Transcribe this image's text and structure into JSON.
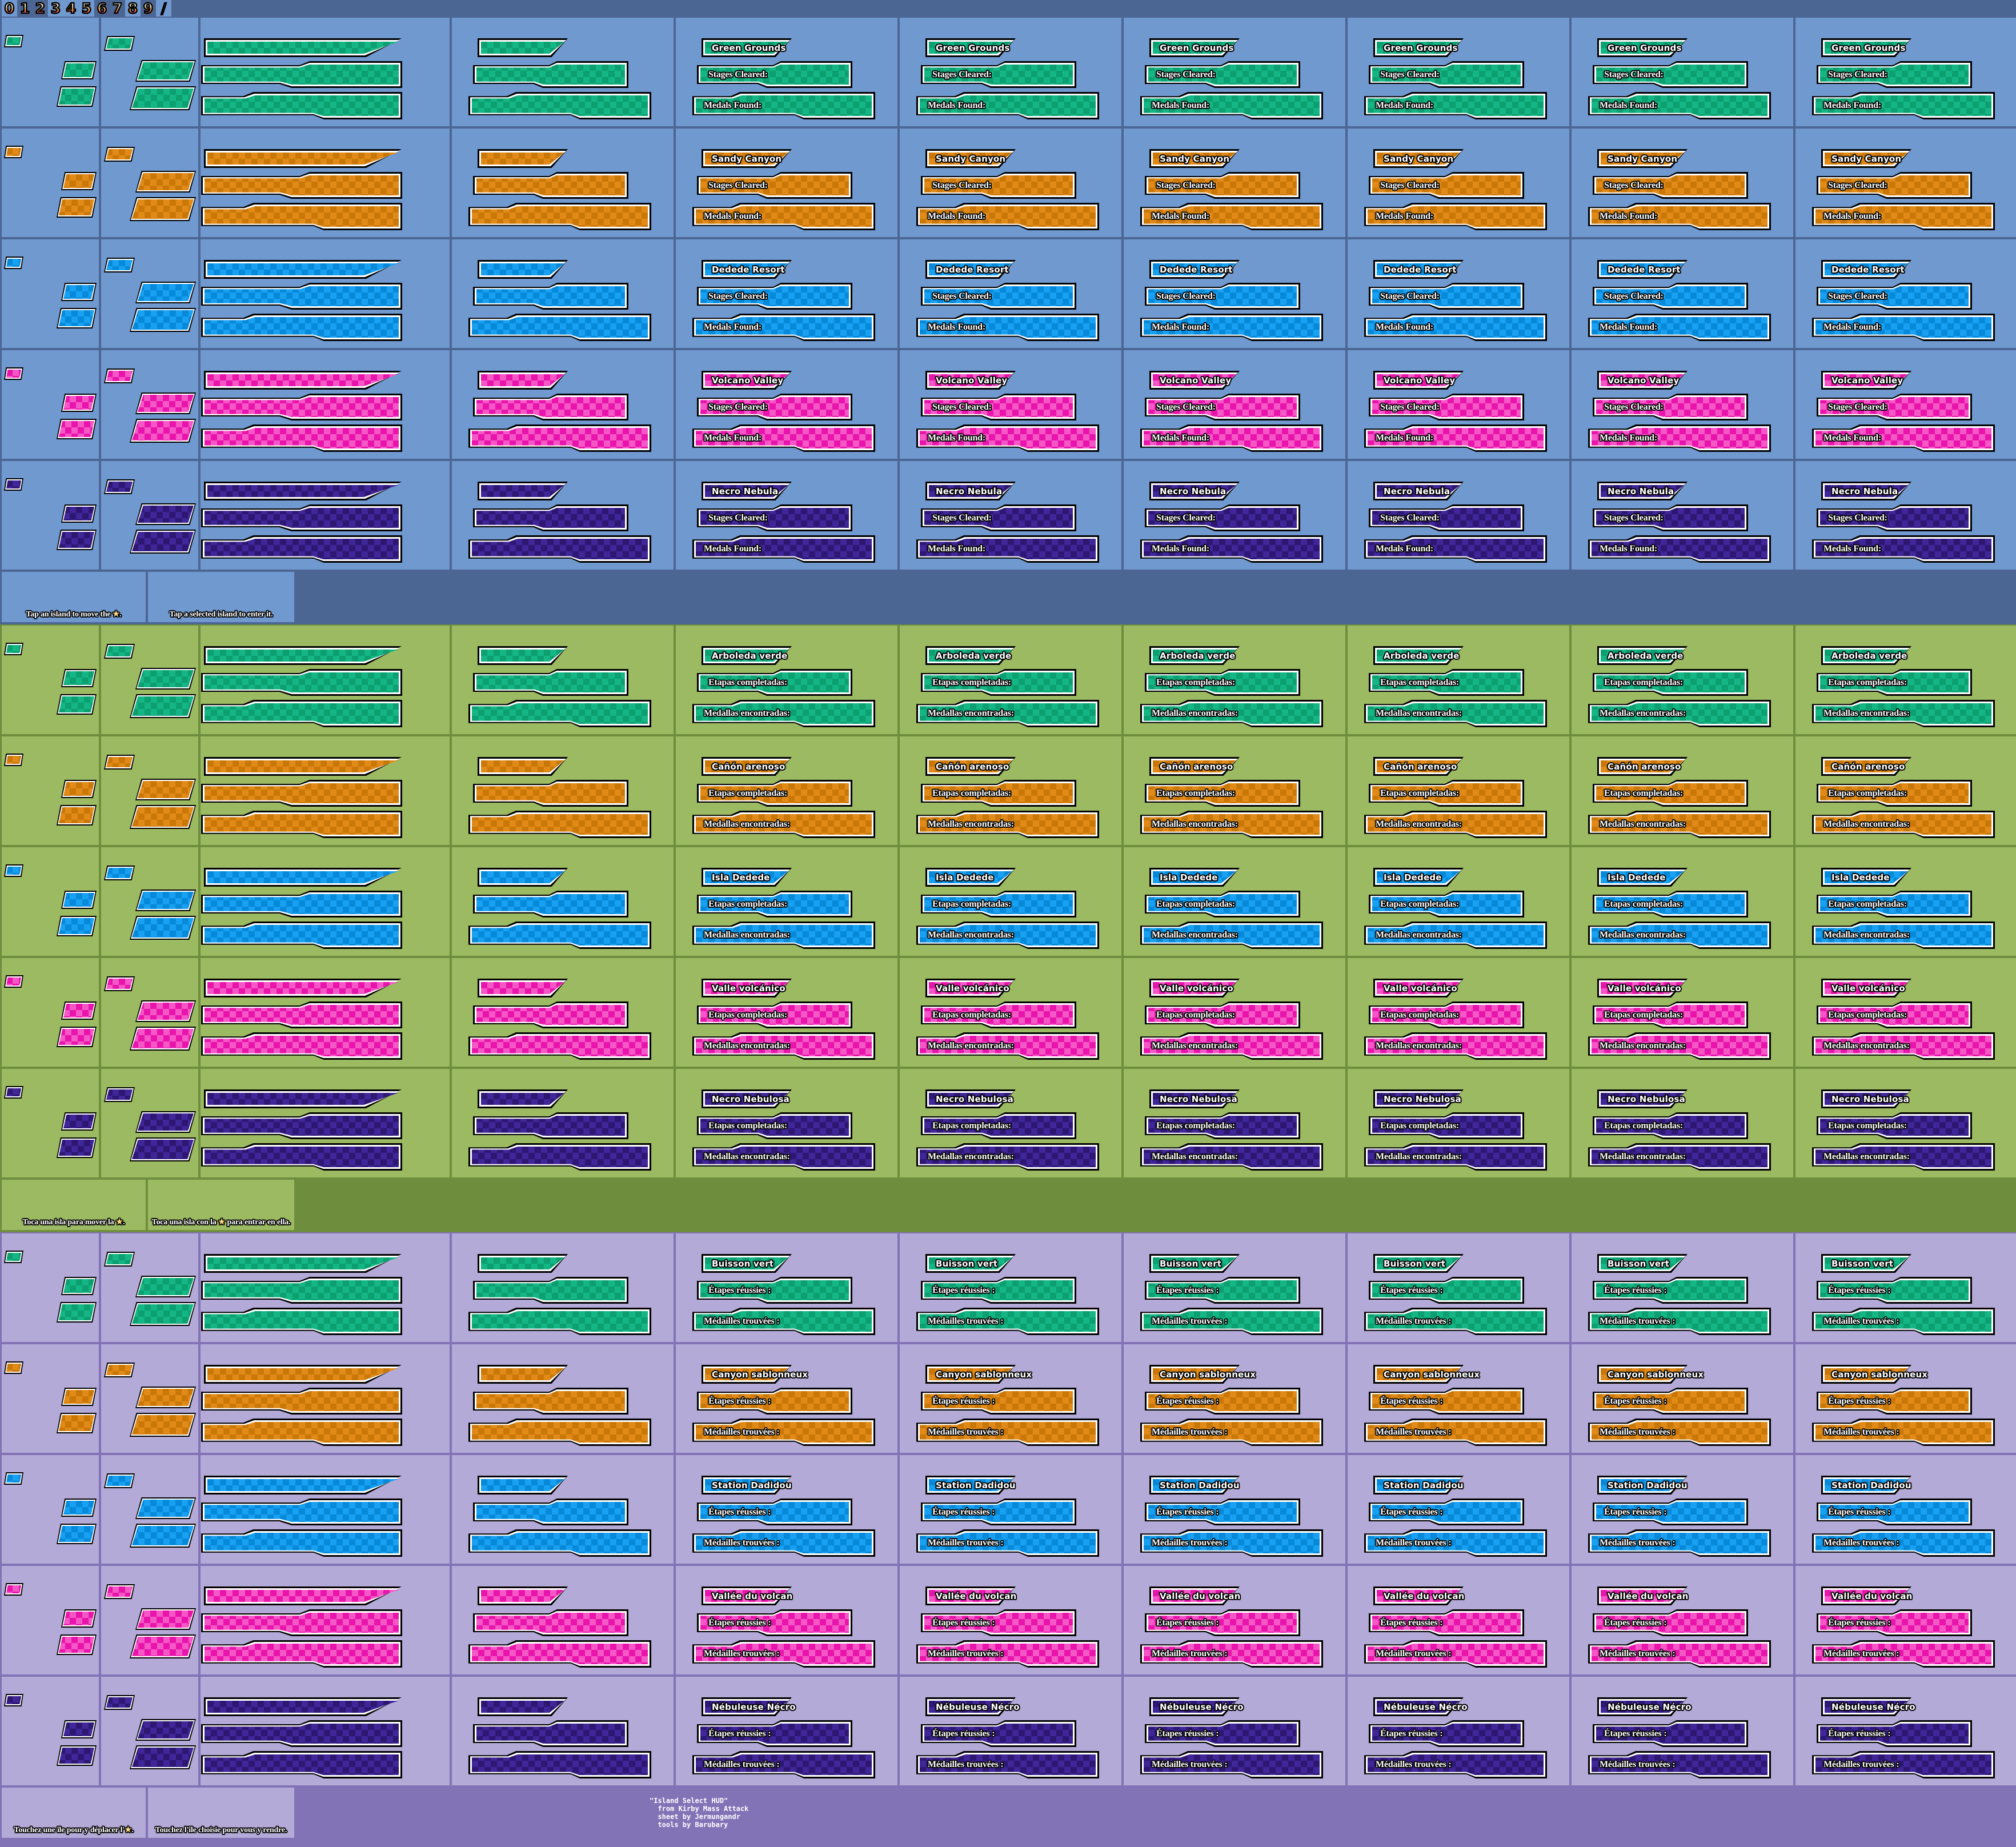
{
  "title": "Island Select HUD sprite sheet",
  "digits": [
    "0",
    "1",
    "2",
    "3",
    "4",
    "5",
    "6",
    "7",
    "8",
    "9",
    "/"
  ],
  "star_char": "★",
  "palette": {
    "sections": [
      {
        "bg": "#4c6694",
        "cell": "#7099d0"
      },
      {
        "bg": "#6e8e3e",
        "cell": "#9cba62"
      },
      {
        "bg": "#8272b6",
        "cell": "#b4aad8"
      }
    ],
    "islands": [
      {
        "name": "green",
        "light": "#15b685",
        "dark": "#0c9f70"
      },
      {
        "name": "orange",
        "light": "#e28a18",
        "dark": "#c97808"
      },
      {
        "name": "blue",
        "light": "#18a0f2",
        "dark": "#0689d9"
      },
      {
        "name": "pink",
        "light": "#f557c7",
        "dark": "#e914ac"
      },
      {
        "name": "purple",
        "light": "#3f2699",
        "dark": "#2e1773"
      }
    ],
    "star": "#f8d982",
    "digit_gradient": [
      "#ffffff",
      "#ffecc0",
      "#ff9c3e",
      "#fb56a4"
    ]
  },
  "sections": [
    {
      "language": "english",
      "islands": [
        "Green Grounds",
        "Sandy Canyon",
        "Dedede Resort",
        "Volcano Valley",
        "Necro Nebula"
      ],
      "stages_label": "Stages Cleared:",
      "medals_label": "Medals Found:",
      "hints": [
        {
          "pre": "Tap an island to move the ",
          "star": true,
          "post": "."
        },
        {
          "pre": "Tap a selected island to enter it.",
          "star": false,
          "post": ""
        }
      ]
    },
    {
      "language": "spanish",
      "islands": [
        "Arboleda verde",
        "Cañón arenoso",
        "Isla Dedede",
        "Valle volcánico",
        "Necro Nebulosa"
      ],
      "stages_label": "Etapas completadas:",
      "medals_label": "Medallas encontradas:",
      "hints": [
        {
          "pre": "Toca una isla para mover la ",
          "star": true,
          "post": "."
        },
        {
          "pre": "Toca una isla con la ",
          "star": true,
          "post": " para entrar en ella."
        }
      ]
    },
    {
      "language": "french",
      "islands": [
        "Buisson vert",
        "Canyon sablonneux",
        "Station Dadidou",
        "Vallée du volcan",
        "Nébuleuse Nécro"
      ],
      "stages_label": "Étapes réussies :",
      "medals_label": "Médailles trouvées :",
      "hints": [
        {
          "pre": "Touchez une île pour y déplacer l'",
          "star": true,
          "post": "."
        },
        {
          "pre": "Touchez l'île choisie pour vous y rendre.",
          "star": false,
          "post": ""
        }
      ]
    }
  ],
  "credits": {
    "lines": [
      "\"Island Select HUD\"",
      "  from Kirby Mass Attack",
      "  sheet by Jermungandr",
      "  tools by Barubary"
    ]
  }
}
